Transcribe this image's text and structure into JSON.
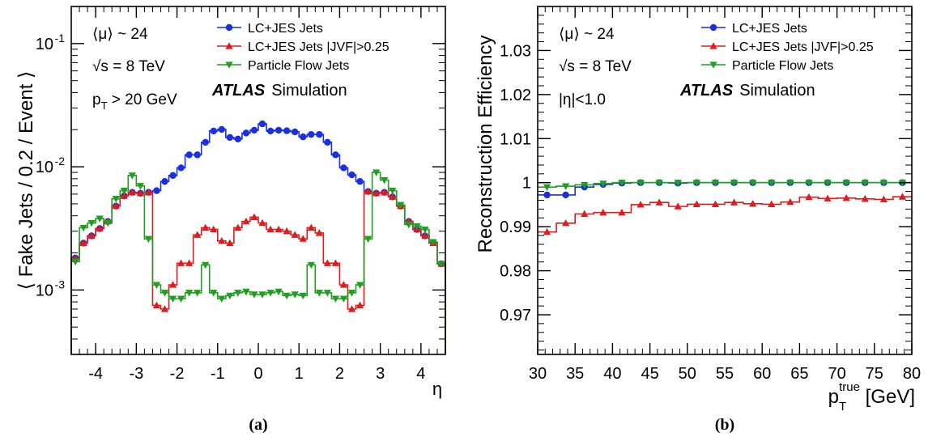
{
  "chart_data": [
    {
      "type": "line",
      "panel_label": "(a)",
      "xlabel": "η",
      "ylabel": "⟨ Fake Jets / 0.2 / Event ⟩",
      "xlim": [
        -4.6,
        4.6
      ],
      "ylim": [
        0.0003,
        0.2
      ],
      "yscale": "log",
      "x_ticks": [
        -4,
        -3,
        -2,
        -1,
        0,
        1,
        2,
        3,
        4
      ],
      "y_ticks": [
        {
          "value": 0.001,
          "label": "10",
          "exp": "-3"
        },
        {
          "value": 0.01,
          "label": "10",
          "exp": "-2"
        },
        {
          "value": 0.1,
          "label": "10",
          "exp": "-1"
        }
      ],
      "annotations": {
        "mu_label": "⟨μ⟩ ~ 24",
        "sqrt_label": "√s = 8 TeV",
        "pt_p": "p",
        "pt_sub": "T",
        "pt_rest": " > 20 GeV",
        "atlas": "ATLAS",
        "simulation": "Simulation"
      },
      "legend_position": "top-right",
      "bin_edges": [
        -4.6,
        -4.4,
        -4.2,
        -4.0,
        -3.8,
        -3.6,
        -3.4,
        -3.2,
        -3.0,
        -2.8,
        -2.6,
        -2.4,
        -2.2,
        -2.0,
        -1.8,
        -1.6,
        -1.4,
        -1.2,
        -1.0,
        -0.8,
        -0.6,
        -0.4,
        -0.2,
        0.0,
        0.2,
        0.4,
        0.6,
        0.8,
        1.0,
        1.2,
        1.4,
        1.6,
        1.8,
        2.0,
        2.2,
        2.4,
        2.6,
        2.8,
        3.0,
        3.2,
        3.4,
        3.6,
        3.8,
        4.0,
        4.2,
        4.4,
        4.6
      ],
      "series": [
        {
          "name": "LC+JES Jets",
          "color": "#1a2fe0",
          "marker": "circle",
          "values": [
            0.00182,
            0.0024,
            0.00275,
            0.00315,
            0.0036,
            0.0048,
            0.0058,
            0.0062,
            0.0061,
            0.0062,
            0.0064,
            0.0076,
            0.0085,
            0.0098,
            0.0125,
            0.0125,
            0.0158,
            0.0195,
            0.0201,
            0.0173,
            0.0168,
            0.0188,
            0.0198,
            0.0223,
            0.0195,
            0.0198,
            0.0196,
            0.0192,
            0.0175,
            0.0183,
            0.0183,
            0.0158,
            0.0125,
            0.0098,
            0.0086,
            0.0076,
            0.0063,
            0.0061,
            0.0062,
            0.0057,
            0.0048,
            0.0036,
            0.0031,
            0.00275,
            0.00243,
            0.00163
          ]
        },
        {
          "name": "LC+JES Jets |JVF|>0.25",
          "color": "#e01b1b",
          "marker": "triangle-up",
          "values": [
            0.0018,
            0.0024,
            0.00275,
            0.00315,
            0.0036,
            0.0048,
            0.0058,
            0.0062,
            0.0061,
            0.0062,
            0.00075,
            0.0007,
            0.0011,
            0.00165,
            0.00165,
            0.0028,
            0.0032,
            0.0031,
            0.0025,
            0.0024,
            0.0032,
            0.0036,
            0.0039,
            0.0035,
            0.0031,
            0.0031,
            0.003,
            0.0028,
            0.0026,
            0.0032,
            0.0029,
            0.00165,
            0.00165,
            0.0011,
            0.0007,
            0.00075,
            0.0063,
            0.0061,
            0.0062,
            0.0057,
            0.0048,
            0.0036,
            0.0031,
            0.00275,
            0.0024,
            0.00163
          ]
        },
        {
          "name": "Particle Flow Jets",
          "color": "#1f9e1f",
          "marker": "triangle-down",
          "values": [
            0.0017,
            0.0032,
            0.0035,
            0.0038,
            0.0035,
            0.0055,
            0.0064,
            0.0085,
            0.007,
            0.0026,
            0.0011,
            0.00095,
            0.00085,
            0.00085,
            0.00095,
            0.00095,
            0.0016,
            0.00095,
            0.00085,
            0.0009,
            0.00095,
            0.00097,
            0.00092,
            0.00092,
            0.00095,
            0.00097,
            0.0009,
            0.00092,
            0.0009,
            0.0016,
            0.00095,
            0.00095,
            0.00085,
            0.00085,
            0.00095,
            0.0011,
            0.0026,
            0.009,
            0.0078,
            0.0064,
            0.0049,
            0.0034,
            0.0033,
            0.0031,
            0.00245,
            0.00163
          ]
        }
      ]
    },
    {
      "type": "line",
      "panel_label": "(b)",
      "xlabel_p": "p",
      "xlabel_sub": "T",
      "xlabel_sup": "true",
      "xlabel_rest": " [GeV]",
      "ylabel": "Reconstruction Efficiency",
      "xlim": [
        30,
        80
      ],
      "ylim": [
        0.961,
        1.04
      ],
      "yscale": "linear",
      "x_ticks": [
        30,
        35,
        40,
        45,
        50,
        55,
        60,
        65,
        70,
        75,
        80
      ],
      "y_ticks": [
        {
          "value": 0.97,
          "label": "0.97"
        },
        {
          "value": 0.98,
          "label": "0.98"
        },
        {
          "value": 0.99,
          "label": "0.99"
        },
        {
          "value": 1.0,
          "label": "1"
        },
        {
          "value": 1.01,
          "label": "1.01"
        },
        {
          "value": 1.02,
          "label": "1.02"
        },
        {
          "value": 1.03,
          "label": "1.03"
        }
      ],
      "annotations": {
        "mu_label": "⟨μ⟩ ~ 24",
        "sqrt_label": "√s = 8 TeV",
        "eta_label": "|η|<1.0",
        "atlas": "ATLAS",
        "simulation": "Simulation"
      },
      "legend_position": "top-right",
      "bin_edges": [
        30,
        32.5,
        35,
        37.5,
        40,
        42.5,
        45,
        47.5,
        50,
        52.5,
        55,
        57.5,
        60,
        62.5,
        65,
        67.5,
        70,
        72.5,
        75,
        77.5,
        80
      ],
      "series": [
        {
          "name": "LC+JES Jets",
          "color": "#1a2fe0",
          "marker": "circle",
          "values": [
            0.9972,
            0.9972,
            0.999,
            0.9996,
            0.9999,
            1.0,
            1.0,
            0.9999,
            1.0,
            1.0,
            1.0,
            1.0,
            1.0,
            1.0,
            1.0,
            1.0,
            1.0,
            1.0,
            1.0,
            1.0
          ]
        },
        {
          "name": "LC+JES Jets |JVF|>0.25",
          "color": "#e01b1b",
          "marker": "triangle-up",
          "values": [
            0.9888,
            0.9908,
            0.9929,
            0.9932,
            0.9932,
            0.995,
            0.9955,
            0.9946,
            0.9951,
            0.9951,
            0.9955,
            0.9952,
            0.9951,
            0.9956,
            0.9967,
            0.9964,
            0.9965,
            0.9963,
            0.9962,
            0.9968
          ]
        },
        {
          "name": "Particle Flow Jets",
          "color": "#1f9e1f",
          "marker": "triangle-down",
          "values": [
            0.999,
            0.9992,
            0.9995,
            0.9998,
            1.0,
            1.0,
            1.0,
            1.0,
            1.0,
            1.0,
            1.0,
            1.0,
            1.0,
            1.0,
            1.0,
            1.0,
            1.0,
            1.0,
            1.0,
            1.0
          ]
        }
      ]
    }
  ]
}
